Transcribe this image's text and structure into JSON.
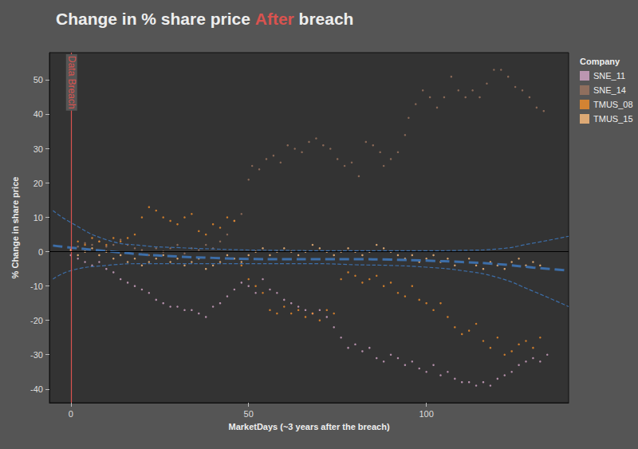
{
  "chart_data": {
    "type": "scatter",
    "title": "Change in % share price After breach",
    "title_highlight": "After",
    "xlabel": "MarketDays (~3 years after the breach)",
    "ylabel": "% Change in share price",
    "legend_title": "Company",
    "legend": "top-right",
    "grid": false,
    "xlim": [
      -6,
      140
    ],
    "ylim": [
      -44,
      58
    ],
    "xticks": [
      0,
      50,
      100
    ],
    "yticks": [
      -40,
      -30,
      -20,
      -10,
      0,
      10,
      20,
      30,
      40,
      50
    ],
    "annotations": [
      {
        "text": "Data Breach",
        "x": 0,
        "color": "#d9534f"
      }
    ],
    "zero_line": {
      "y": 0,
      "color": "#000000"
    },
    "series": [
      {
        "name": "SNE_11",
        "color": "#d4a6c8",
        "x": [
          0,
          2,
          4,
          6,
          8,
          10,
          12,
          14,
          16,
          18,
          20,
          22,
          24,
          26,
          28,
          30,
          32,
          34,
          36,
          38,
          40,
          42,
          44,
          46,
          48,
          50,
          52,
          54,
          56,
          58,
          60,
          62,
          64,
          66,
          68,
          70,
          72,
          74,
          76,
          78,
          80,
          82,
          84,
          86,
          88,
          90,
          92,
          94,
          96,
          98,
          100,
          102,
          104,
          106,
          108,
          110,
          112,
          114,
          116,
          118,
          120,
          122,
          124,
          126,
          128,
          130,
          132,
          134
        ],
        "values": [
          -1,
          -2,
          -3,
          -4,
          -3,
          -5,
          -6,
          -8,
          -9,
          -10,
          -11,
          -12,
          -14,
          -15,
          -16,
          -16,
          -17,
          -17,
          -18,
          -19,
          -16,
          -15,
          -13,
          -11,
          -9,
          -10,
          -12,
          -8,
          -11,
          -12,
          -14,
          -15,
          -16,
          -17,
          -18,
          -17,
          -19,
          -22,
          -25,
          -28,
          -27,
          -29,
          -28,
          -31,
          -32,
          -30,
          -31,
          -33,
          -32,
          -34,
          -35,
          -33,
          -36,
          -35,
          -37,
          -38,
          -38,
          -39,
          -38,
          -39,
          -37,
          -36,
          -35,
          -33,
          -32,
          -31,
          -32,
          -30
        ]
      },
      {
        "name": "SNE_14",
        "color": "#9d7660",
        "x": [
          0,
          2,
          4,
          6,
          8,
          10,
          12,
          14,
          16,
          18,
          20,
          22,
          24,
          26,
          28,
          30,
          32,
          34,
          36,
          38,
          40,
          42,
          44,
          46,
          48,
          50,
          51,
          53,
          55,
          57,
          59,
          61,
          63,
          65,
          67,
          69,
          71,
          73,
          75,
          77,
          79,
          81,
          83,
          85,
          87,
          88,
          90,
          92,
          94,
          95,
          97,
          99,
          101,
          103,
          105,
          107,
          109,
          111,
          113,
          115,
          117,
          119,
          121,
          123,
          125,
          127,
          129,
          131,
          133
        ],
        "values": [
          0.5,
          1.5,
          2.5,
          2,
          3,
          1.5,
          2,
          3.5,
          2,
          1,
          0.5,
          -1,
          1,
          0,
          1,
          2,
          -0.5,
          1,
          0.5,
          2,
          1,
          3,
          5,
          9,
          11,
          21,
          25,
          24,
          27,
          28,
          26,
          31,
          30,
          29,
          32,
          33,
          31,
          30,
          27,
          25,
          26,
          22,
          32,
          31,
          29,
          25,
          27,
          29,
          34,
          39,
          43,
          47,
          45,
          42,
          45,
          51,
          47,
          45,
          47,
          45,
          49,
          53,
          53,
          51,
          48,
          47,
          45,
          42,
          41
        ]
      },
      {
        "name": "TMUS_08",
        "color": "#f28e2b",
        "x": [
          0,
          2,
          4,
          6,
          8,
          10,
          12,
          14,
          16,
          18,
          20,
          22,
          24,
          26,
          28,
          30,
          32,
          34,
          36,
          38,
          40,
          42,
          44,
          46,
          48,
          50,
          52,
          54,
          56,
          58,
          60,
          62,
          64,
          66,
          68,
          70,
          72,
          74,
          76,
          78,
          80,
          82,
          84,
          86,
          88,
          90,
          92,
          94,
          96,
          98,
          100,
          102,
          104,
          106,
          108,
          110,
          112,
          114,
          116,
          118,
          120,
          122,
          124,
          126,
          128,
          130,
          132
        ],
        "values": [
          1,
          3,
          2,
          4,
          3,
          2,
          4,
          3,
          4,
          5,
          10,
          13,
          12,
          10,
          9,
          8,
          10,
          11,
          6,
          5,
          8,
          7,
          10,
          9,
          -4,
          -8,
          -10,
          -12,
          -17,
          -18,
          -16,
          -18,
          -17,
          -19,
          -18,
          -20,
          -17,
          -18,
          -8,
          -6,
          -7,
          -9,
          -8,
          -7,
          -10,
          -9,
          -12,
          -13,
          -10,
          -14,
          -15,
          -17,
          -15,
          -19,
          -22,
          -24,
          -23,
          -21,
          -26,
          -28,
          -25,
          -30,
          -29,
          -27,
          -26,
          -28,
          -25
        ]
      },
      {
        "name": "TMUS_15",
        "color": "#ffbe7d",
        "x": [
          0,
          2,
          4,
          6,
          8,
          10,
          12,
          14,
          16,
          18,
          20,
          22,
          24,
          26,
          28,
          30,
          32,
          34,
          36,
          38,
          40,
          42,
          44,
          46,
          48,
          50,
          52,
          54,
          56,
          58,
          60,
          62,
          64,
          66,
          68,
          70,
          72,
          74,
          76,
          78,
          80,
          82,
          84,
          86,
          88,
          90,
          92,
          94,
          96,
          98,
          100,
          102,
          104,
          106,
          108,
          110,
          112,
          114,
          116,
          118,
          120,
          122,
          124,
          126,
          128,
          130,
          132
        ],
        "values": [
          0.5,
          -1,
          0,
          1,
          -1,
          0,
          -2,
          -1,
          -3,
          -2,
          -4,
          -3,
          -2,
          -1,
          -3,
          -2,
          -4,
          -3,
          -2,
          -5,
          -4,
          -3,
          -1,
          -2,
          -3,
          -1,
          0,
          1,
          -1,
          0,
          1,
          0,
          -1,
          0,
          2,
          1,
          0,
          -1,
          0,
          1,
          0,
          -1,
          0,
          2,
          1,
          0,
          -1,
          -2,
          -1,
          -3,
          -2,
          -1,
          -3,
          -2,
          -4,
          -3,
          -2,
          -4,
          -5,
          -3,
          -4,
          -5,
          -3,
          -2,
          -4,
          -3,
          -4
        ]
      }
    ],
    "trend": {
      "color": "#3d6ea8",
      "line_style": "dashed",
      "x": [
        -5,
        0,
        10,
        20,
        30,
        40,
        50,
        60,
        70,
        80,
        90,
        100,
        110,
        120,
        130,
        140
      ],
      "values": [
        1.8,
        1.2,
        0.2,
        -0.8,
        -1.4,
        -1.8,
        -2.1,
        -2.2,
        -2.2,
        -2.2,
        -2.3,
        -2.6,
        -3.0,
        -3.6,
        -4.6,
        -5.5
      ],
      "upper": [
        12,
        8.5,
        3.5,
        1.8,
        1.2,
        0.8,
        0.5,
        0.4,
        0.3,
        0.3,
        0.3,
        0.3,
        0.4,
        0.8,
        2.5,
        4.5
      ],
      "lower": [
        -8,
        -5.5,
        -4,
        -3.5,
        -3.5,
        -3.5,
        -3.5,
        -3.5,
        -3.5,
        -3.8,
        -4,
        -4.5,
        -5.5,
        -7.5,
        -11.5,
        -16
      ]
    }
  }
}
